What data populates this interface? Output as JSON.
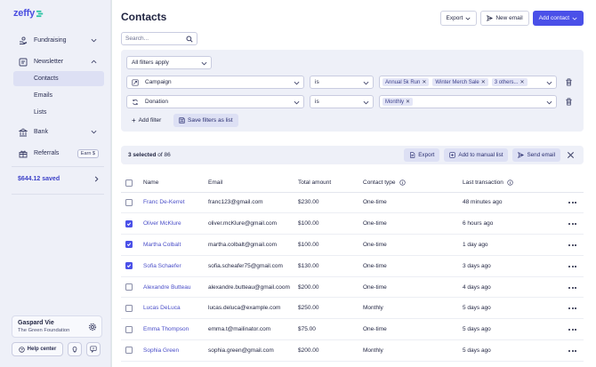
{
  "app": {
    "logo": "zeffy"
  },
  "sidebar": {
    "items": [
      {
        "label": "Fundraising"
      },
      {
        "label": "Newsletter"
      },
      {
        "label": "Bank"
      },
      {
        "label": "Referrals",
        "badge": "Earn $"
      }
    ],
    "newsletter_sub": [
      {
        "label": "Contacts"
      },
      {
        "label": "Emails"
      },
      {
        "label": "Lists"
      }
    ],
    "saved": "$644.12 saved",
    "account": {
      "name": "Gaspard Vie",
      "org": "The Green Foundation"
    },
    "help_label": "Help center"
  },
  "header": {
    "title": "Contacts",
    "export_label": "Export",
    "new_email_label": "New email",
    "add_contact_label": "Add contact"
  },
  "search": {
    "placeholder": "Search..."
  },
  "filters": {
    "mode": "All filters apply",
    "rows": [
      {
        "field": "Campaign",
        "op": "is",
        "tags": [
          "Annual 5k Run",
          "Winter Merch Sale",
          "3 others..."
        ]
      },
      {
        "field": "Donation",
        "op": "is",
        "tags": [
          "Monthly"
        ]
      }
    ],
    "add_filter_label": "Add filter",
    "save_list_label": "Save filters as list"
  },
  "bulk": {
    "selected_count": "3 selected",
    "of_total": "of 86",
    "export_label": "Export",
    "add_manual_label": "Add to manual list",
    "send_email_label": "Send email"
  },
  "table": {
    "headers": {
      "name": "Name",
      "email": "Email",
      "total": "Total amount",
      "type": "Contact type",
      "last": "Last transaction"
    },
    "rows": [
      {
        "name": "Franc De-Kerret",
        "email": "franc123@gmail.com",
        "total": "$230.00",
        "type": "One-time",
        "last": "48 minutes ago",
        "checked": false
      },
      {
        "name": "Oliver McKlure",
        "email": "oliver.mcKlure@gmail.com",
        "total": "$100.00",
        "type": "One-time",
        "last": "6 hours ago",
        "checked": true
      },
      {
        "name": "Martha Colbalt",
        "email": "martha.colbalt@gmail.com",
        "total": "$100.00",
        "type": "One-time",
        "last": "1 day ago",
        "checked": true
      },
      {
        "name": "Sofia Schaefer",
        "email": "sofia.scheafer75@gmail.com",
        "total": "$130.00",
        "type": "One-time",
        "last": "3 days ago",
        "checked": true
      },
      {
        "name": "Alexandre Butteau",
        "email": "alexandre.butteau@gmail.coom",
        "total": "$200.00",
        "type": "One-time",
        "last": "4 days ago",
        "checked": false
      },
      {
        "name": "Lucas DeLuca",
        "email": "lucas.deluca@example.com",
        "total": "$250.00",
        "type": "Monthly",
        "last": "5 days ago",
        "checked": false
      },
      {
        "name": "Emma Thompson",
        "email": "emma.t@mailinator.com",
        "total": "$75.00",
        "type": "One-time",
        "last": "5 days ago",
        "checked": false
      },
      {
        "name": "Sophia Green",
        "email": "sophia.green@gmail.com",
        "total": "$200.00",
        "type": "Monthly",
        "last": "5 days ago",
        "checked": false
      }
    ]
  },
  "colors": {
    "accent": "#4a50e8",
    "sidebar_bg": "#eef0f8",
    "link": "#4a4ec8"
  }
}
